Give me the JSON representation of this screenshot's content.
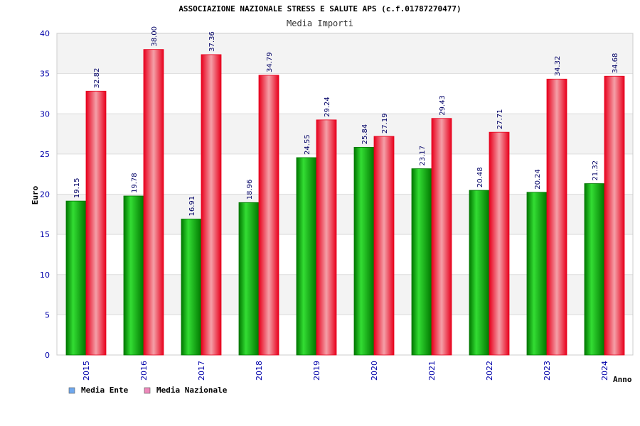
{
  "chart_data": {
    "type": "bar",
    "title": "ASSOCIAZIONE NAZIONALE STRESS E SALUTE APS (c.f.01787270477)",
    "subtitle": "Media Importi",
    "xlabel": "Anno",
    "ylabel": "Euro",
    "ylim": [
      0,
      40
    ],
    "yticks": [
      "0",
      "5",
      "10",
      "15",
      "20",
      "25",
      "30",
      "35",
      "40"
    ],
    "categories": [
      "2015",
      "2016",
      "2017",
      "2018",
      "2019",
      "2020",
      "2021",
      "2022",
      "2023",
      "2024"
    ],
    "series": [
      {
        "name": "Media Ente",
        "values": [
          19.15,
          19.78,
          16.91,
          18.96,
          24.55,
          25.84,
          23.17,
          20.48,
          20.24,
          21.32
        ],
        "labels": [
          "19.15",
          "19.78",
          "16.91",
          "18.96",
          "24.55",
          "25.84",
          "23.17",
          "20.48",
          "20.24",
          "21.32"
        ]
      },
      {
        "name": "Media Nazionale",
        "values": [
          32.82,
          38.0,
          37.36,
          34.79,
          29.24,
          27.19,
          29.43,
          27.71,
          34.32,
          34.68
        ],
        "labels": [
          "32.82",
          "38.00",
          "37.36",
          "34.79",
          "29.24",
          "27.19",
          "29.43",
          "27.71",
          "34.32",
          "34.68"
        ]
      }
    ],
    "grid": true,
    "legend_position": "bottom-left",
    "colors": {
      "ente_light": "#33dd33",
      "ente_dark": "#007700",
      "naz_light": "#f4a0a8",
      "naz_dark": "#e8001c",
      "legend_ente": "#6fa8ee",
      "legend_naz": "#ee88bb",
      "axis_text": "#0000aa",
      "label_text": "#000066",
      "band": "#f3f3f3",
      "grid": "#dddddd"
    }
  }
}
